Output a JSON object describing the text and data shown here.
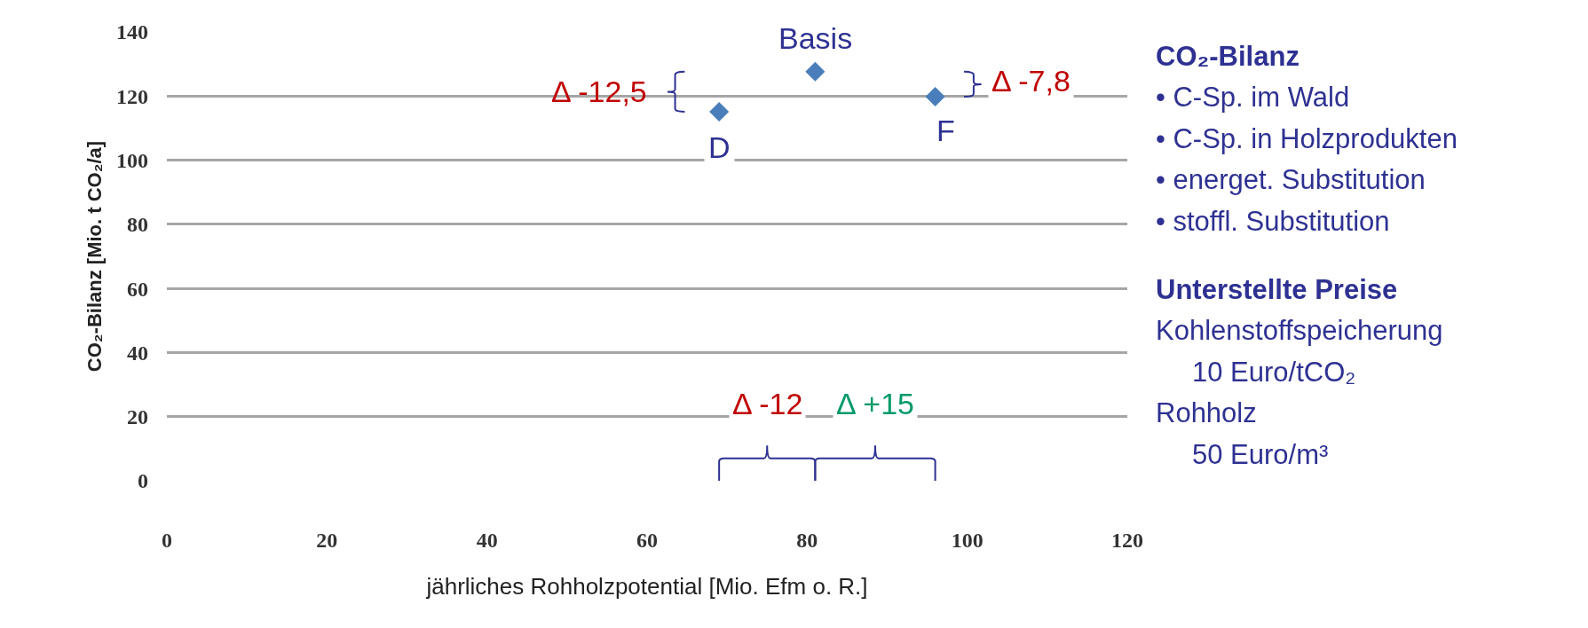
{
  "chart_data": {
    "type": "scatter",
    "xlabel": "jährliches Rohholzpotential [Mio. Efm o. R.]",
    "ylabel": "CO₂-Bilanz [Mio. t CO₂/a]",
    "x": [
      69,
      81,
      96
    ],
    "series": [
      {
        "color": "#4a7ebb",
        "values": [
          115.1,
          127.6,
          119.8
        ]
      }
    ],
    "marker": "diamond",
    "grid": "y",
    "xlim": [
      0,
      120
    ],
    "xticks": [
      0,
      20,
      40,
      60,
      80,
      100,
      120
    ],
    "ylim": [
      0,
      140
    ],
    "yticks": [
      0,
      20,
      40,
      60,
      80,
      100,
      120,
      140
    ],
    "annotations": [
      {
        "text": "D",
        "x": 69,
        "y": 115.1
      },
      {
        "text": "Basis",
        "x": 81,
        "y": 127.6
      },
      {
        "text": "F",
        "x": 96,
        "y": 119.8
      },
      "Δ -12,5",
      "Δ -7,8",
      "Δ -12",
      "Δ +15",
      "CO₂-Bilanz",
      "• C-Sp. im Wald",
      "• C-Sp. in Holzprodukten",
      "• energet. Substitution",
      "• stoffl. Substitution",
      "Unterstellte Preise",
      "Kohlenstoffspeicherung",
      "10 Euro/tCO₂",
      "Rohholz",
      "50 Euro/m³"
    ]
  }
}
